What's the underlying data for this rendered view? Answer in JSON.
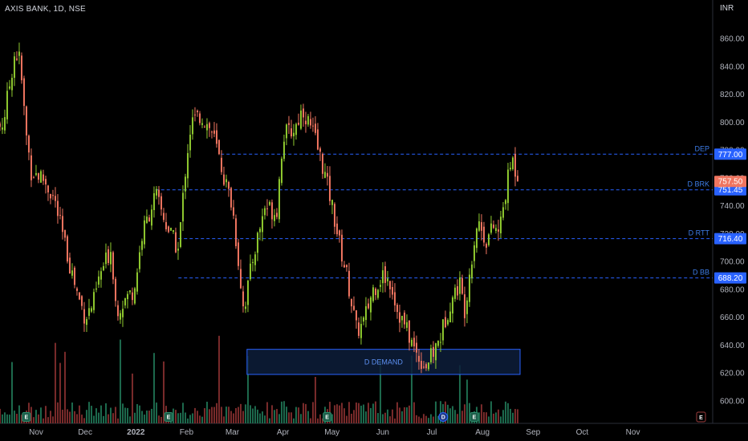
{
  "header": {
    "title": "AXIS BANK, 1D, NSE",
    "currency": "INR"
  },
  "colors": {
    "up": "#8fc92f",
    "down": "#f07560",
    "vol_up": "#1d6b4e",
    "vol_down": "#7a2b2b",
    "level": "#2962ff",
    "zone_fill": "#0d1d3a",
    "zone_border": "#2962ff",
    "tag_blue": "#2962ff",
    "tag_red": "#f07560",
    "grid": "#0c0c0c"
  },
  "chart_data": {
    "type": "candlestick",
    "title": "AXIS BANK, 1D, NSE",
    "y_ticks": [
      "600.00",
      "620.00",
      "640.00",
      "660.00",
      "680.00",
      "700.00",
      "720.00",
      "740.00",
      "760.00",
      "780.00",
      "800.00",
      "820.00",
      "840.00",
      "860.00"
    ],
    "y_tick_values": [
      600,
      620,
      640,
      660,
      680,
      700,
      720,
      740,
      760,
      780,
      800,
      820,
      840,
      860
    ],
    "ylim": [
      592,
      870
    ],
    "x_ticks": [
      "Nov",
      "Dec",
      "2022",
      "Feb",
      "Mar",
      "Apr",
      "May",
      "Jun",
      "Jul",
      "Aug",
      "Sep",
      "Oct",
      "Nov"
    ],
    "series_points": [
      {
        "d": "2021-10-04",
        "close": 790
      },
      {
        "d": "2021-10-12",
        "close": 800
      },
      {
        "d": "2021-10-19",
        "close": 850
      },
      {
        "d": "2021-10-22",
        "close": 845
      },
      {
        "d": "2021-10-26",
        "close": 790
      },
      {
        "d": "2021-10-29",
        "close": 765
      },
      {
        "d": "2021-11-05",
        "close": 760
      },
      {
        "d": "2021-11-12",
        "close": 745
      },
      {
        "d": "2021-11-19",
        "close": 710
      },
      {
        "d": "2021-11-26",
        "close": 678
      },
      {
        "d": "2021-12-01",
        "close": 660
      },
      {
        "d": "2021-12-06",
        "close": 670
      },
      {
        "d": "2021-12-10",
        "close": 690
      },
      {
        "d": "2021-12-17",
        "close": 710
      },
      {
        "d": "2021-12-20",
        "close": 665
      },
      {
        "d": "2021-12-27",
        "close": 675
      },
      {
        "d": "2021-12-31",
        "close": 680
      },
      {
        "d": "2022-01-05",
        "close": 720
      },
      {
        "d": "2022-01-13",
        "close": 748
      },
      {
        "d": "2022-01-20",
        "close": 725
      },
      {
        "d": "2022-01-27",
        "close": 708
      },
      {
        "d": "2022-02-01",
        "close": 775
      },
      {
        "d": "2022-02-04",
        "close": 800
      },
      {
        "d": "2022-02-10",
        "close": 805
      },
      {
        "d": "2022-02-17",
        "close": 792
      },
      {
        "d": "2022-02-24",
        "close": 760
      },
      {
        "d": "2022-03-01",
        "close": 740
      },
      {
        "d": "2022-03-08",
        "close": 665
      },
      {
        "d": "2022-03-14",
        "close": 705
      },
      {
        "d": "2022-03-21",
        "close": 740
      },
      {
        "d": "2022-03-28",
        "close": 735
      },
      {
        "d": "2022-04-01",
        "close": 790
      },
      {
        "d": "2022-04-08",
        "close": 795
      },
      {
        "d": "2022-04-13",
        "close": 810
      },
      {
        "d": "2022-04-20",
        "close": 790
      },
      {
        "d": "2022-04-25",
        "close": 770
      },
      {
        "d": "2022-05-01",
        "close": 740
      },
      {
        "d": "2022-05-06",
        "close": 710
      },
      {
        "d": "2022-05-10",
        "close": 690
      },
      {
        "d": "2022-05-16",
        "close": 650
      },
      {
        "d": "2022-05-20",
        "close": 655
      },
      {
        "d": "2022-05-26",
        "close": 680
      },
      {
        "d": "2022-06-01",
        "close": 690
      },
      {
        "d": "2022-06-06",
        "close": 685
      },
      {
        "d": "2022-06-10",
        "close": 665
      },
      {
        "d": "2022-06-16",
        "close": 650
      },
      {
        "d": "2022-06-21",
        "close": 635
      },
      {
        "d": "2022-06-27",
        "close": 625
      },
      {
        "d": "2022-07-01",
        "close": 632
      },
      {
        "d": "2022-07-06",
        "close": 645
      },
      {
        "d": "2022-07-12",
        "close": 670
      },
      {
        "d": "2022-07-18",
        "close": 685
      },
      {
        "d": "2022-07-21",
        "close": 665
      },
      {
        "d": "2022-07-25",
        "close": 700
      },
      {
        "d": "2022-07-29",
        "close": 730
      },
      {
        "d": "2022-08-03",
        "close": 715
      },
      {
        "d": "2022-08-08",
        "close": 725
      },
      {
        "d": "2022-08-11",
        "close": 720
      },
      {
        "d": "2022-08-16",
        "close": 755
      },
      {
        "d": "2022-08-19",
        "close": 775
      },
      {
        "d": "2022-08-23",
        "close": 757.5
      }
    ],
    "volume_note": "relative volume bars at bottom",
    "levels": [
      {
        "label": "DEP",
        "value": 777.0,
        "tag": "777.00",
        "from": "2022-02-22"
      },
      {
        "label": "D BRK",
        "value": 751.45,
        "tag": "751.45",
        "from": "2022-01-13"
      },
      {
        "label": "D RTT",
        "value": 716.4,
        "tag": "716.40",
        "from": "2022-01-27"
      },
      {
        "label": "D BB",
        "value": 688.2,
        "tag": "688.20",
        "from": "2022-01-27"
      }
    ],
    "last_price": {
      "value": 757.5,
      "tag": "757.50"
    },
    "zone": {
      "label": "D DEMAND",
      "top": 637,
      "bottom": 619,
      "from": "2022-03-10",
      "to": "2022-08-24"
    },
    "event_flags": [
      {
        "date": "2021-10-26",
        "letter": "E"
      },
      {
        "date": "2022-01-21",
        "letter": "E"
      },
      {
        "date": "2022-04-28",
        "letter": "E"
      },
      {
        "date": "2022-07-08",
        "letter": "D"
      },
      {
        "date": "2022-07-27",
        "letter": "E"
      }
    ],
    "scroll_marker": "E"
  }
}
